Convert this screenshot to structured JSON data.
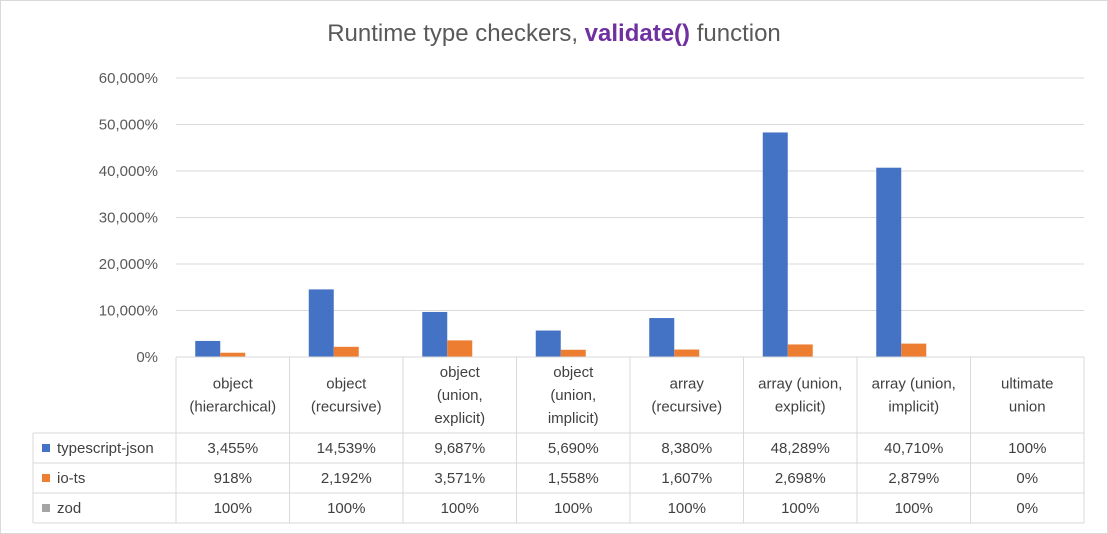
{
  "chart_data": {
    "type": "bar",
    "title_prefix": "Runtime type checkers,",
    "title_highlight": "validate()",
    "title_suffix": "function",
    "title_highlight_color": "#7030a0",
    "categories": [
      [
        "object",
        "(hierarchical)"
      ],
      [
        "object",
        "(recursive)"
      ],
      [
        "object",
        "(union,",
        "explicit)"
      ],
      [
        "object",
        "(union,",
        "implicit)"
      ],
      [
        "array",
        "(recursive)"
      ],
      [
        "array (union,",
        "explicit)"
      ],
      [
        "array (union,",
        "implicit)"
      ],
      [
        "ultimate",
        "union"
      ]
    ],
    "ylim": [
      0,
      60000
    ],
    "yticks": [
      0,
      10000,
      20000,
      30000,
      40000,
      50000,
      60000
    ],
    "ytick_labels": [
      "0%",
      "10,000%",
      "20,000%",
      "30,000%",
      "40,000%",
      "50,000%",
      "60,000%"
    ],
    "grid": true,
    "legend": "data-table-left",
    "series": [
      {
        "name": "typescript-json",
        "color": "#4472c4",
        "values": [
          3455,
          14539,
          9687,
          5690,
          8380,
          48289,
          40710,
          100
        ],
        "labels": [
          "3,455%",
          "14,539%",
          "9,687%",
          "5,690%",
          "8,380%",
          "48,289%",
          "40,710%",
          "100%"
        ]
      },
      {
        "name": "io-ts",
        "color": "#ed7d31",
        "values": [
          918,
          2192,
          3571,
          1558,
          1607,
          2698,
          2879,
          0
        ],
        "labels": [
          "918%",
          "2,192%",
          "3,571%",
          "1,558%",
          "1,607%",
          "2,698%",
          "2,879%",
          "0%"
        ]
      },
      {
        "name": "zod",
        "color": "#a5a5a5",
        "values": [
          100,
          100,
          100,
          100,
          100,
          100,
          100,
          0
        ],
        "labels": [
          "100%",
          "100%",
          "100%",
          "100%",
          "100%",
          "100%",
          "100%",
          "0%"
        ]
      }
    ]
  }
}
